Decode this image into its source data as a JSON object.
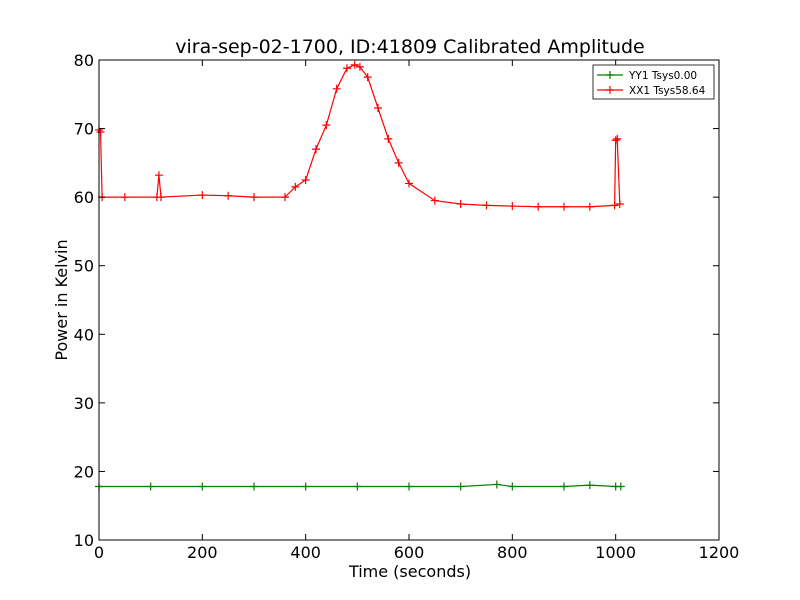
{
  "chart_data": {
    "type": "line",
    "title": "vira-sep-02-1700, ID:41809 Calibrated Amplitude",
    "xlabel": "Time (seconds)",
    "ylabel": "Power in Kelvin",
    "xlim": [
      0,
      1200
    ],
    "ylim": [
      10,
      80
    ],
    "xticks": [
      0,
      200,
      400,
      600,
      800,
      1000,
      1200
    ],
    "yticks": [
      10,
      20,
      30,
      40,
      50,
      60,
      70,
      80
    ],
    "grid": false,
    "legend_position": "top-right",
    "series": [
      {
        "name": "YY1 Tsys0.00",
        "color": "#008000",
        "marker": "+",
        "x": [
          0,
          100,
          200,
          300,
          400,
          500,
          600,
          700,
          770,
          800,
          900,
          950,
          1000,
          1010
        ],
        "y": [
          17.8,
          17.8,
          17.8,
          17.8,
          17.8,
          17.8,
          17.8,
          17.8,
          18.1,
          17.8,
          17.8,
          18.0,
          17.8,
          17.8
        ]
      },
      {
        "name": "XX1 Tsys58.64",
        "color": "#ff0000",
        "marker": "+",
        "x": [
          0,
          3,
          6,
          50,
          112,
          116,
          120,
          200,
          250,
          300,
          360,
          380,
          400,
          420,
          440,
          460,
          480,
          495,
          505,
          520,
          540,
          560,
          580,
          600,
          650,
          700,
          750,
          800,
          850,
          900,
          950,
          998,
          1000,
          1003,
          1008
        ],
        "y": [
          69.8,
          69.5,
          60.0,
          60.0,
          60.0,
          63.2,
          60.0,
          60.3,
          60.2,
          60.0,
          60.0,
          61.5,
          62.5,
          67.0,
          70.5,
          75.8,
          78.8,
          79.3,
          79.0,
          77.5,
          73.0,
          68.5,
          65.0,
          62.0,
          59.5,
          59.0,
          58.8,
          58.7,
          58.6,
          58.6,
          58.6,
          58.8,
          68.3,
          68.5,
          59.0
        ]
      }
    ]
  }
}
